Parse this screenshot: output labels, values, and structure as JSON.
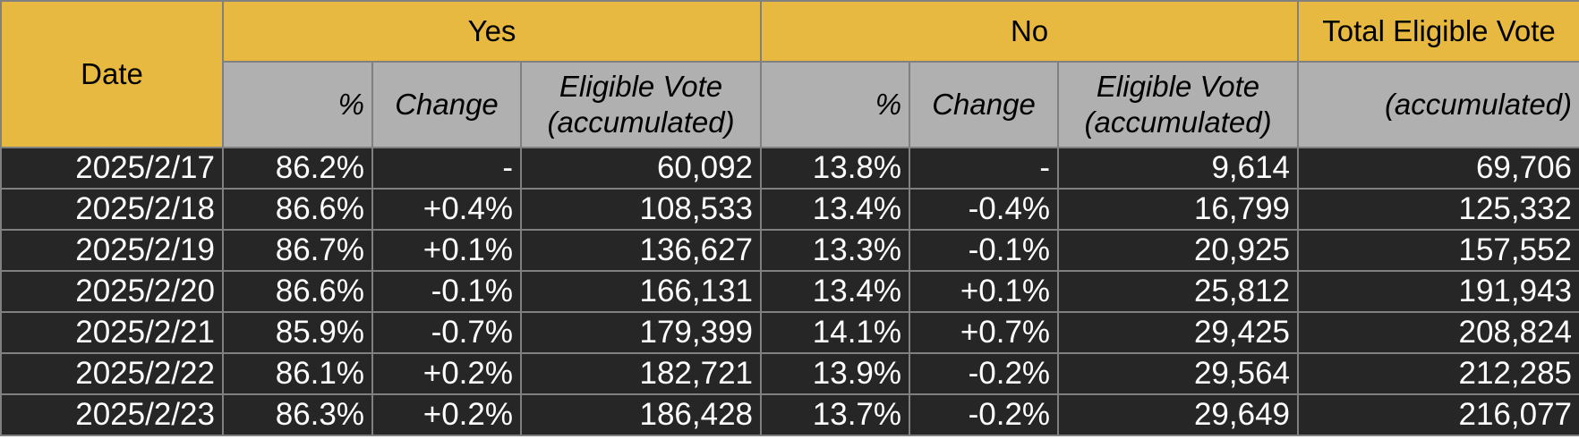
{
  "chart_data": {
    "type": "table",
    "header": {
      "date": "Date",
      "yes": "Yes",
      "no": "No",
      "total": "Total Eligible Vote",
      "total_sub": "(accumulated)",
      "pct": "%",
      "change": "Change",
      "eligible_line1": "Eligible Vote",
      "eligible_line2": "(accumulated)"
    },
    "rows": [
      {
        "date": "2025/2/17",
        "yes_pct": "86.2%",
        "yes_change": "-",
        "yes_votes": "60,092",
        "no_pct": "13.8%",
        "no_change": "-",
        "no_votes": "9,614",
        "total": "69,706"
      },
      {
        "date": "2025/2/18",
        "yes_pct": "86.6%",
        "yes_change": "+0.4%",
        "yes_votes": "108,533",
        "no_pct": "13.4%",
        "no_change": "-0.4%",
        "no_votes": "16,799",
        "total": "125,332"
      },
      {
        "date": "2025/2/19",
        "yes_pct": "86.7%",
        "yes_change": "+0.1%",
        "yes_votes": "136,627",
        "no_pct": "13.3%",
        "no_change": "-0.1%",
        "no_votes": "20,925",
        "total": "157,552"
      },
      {
        "date": "2025/2/20",
        "yes_pct": "86.6%",
        "yes_change": "-0.1%",
        "yes_votes": "166,131",
        "no_pct": "13.4%",
        "no_change": "+0.1%",
        "no_votes": "25,812",
        "total": "191,943"
      },
      {
        "date": "2025/2/21",
        "yes_pct": "85.9%",
        "yes_change": "-0.7%",
        "yes_votes": "179,399",
        "no_pct": "14.1%",
        "no_change": "+0.7%",
        "no_votes": "29,425",
        "total": "208,824"
      },
      {
        "date": "2025/2/22",
        "yes_pct": "86.1%",
        "yes_change": "+0.2%",
        "yes_votes": "182,721",
        "no_pct": "13.9%",
        "no_change": "-0.2%",
        "no_votes": "29,564",
        "total": "212,285"
      },
      {
        "date": "2025/2/23",
        "yes_pct": "86.3%",
        "yes_change": "+0.2%",
        "yes_votes": "186,428",
        "no_pct": "13.7%",
        "no_change": "-0.2%",
        "no_votes": "29,649",
        "total": "216,077"
      }
    ],
    "colors": {
      "header_gold": "#e8b940",
      "subheader_grey": "#b0b0b0",
      "body_dark": "#262626",
      "grid": "#808080"
    }
  }
}
